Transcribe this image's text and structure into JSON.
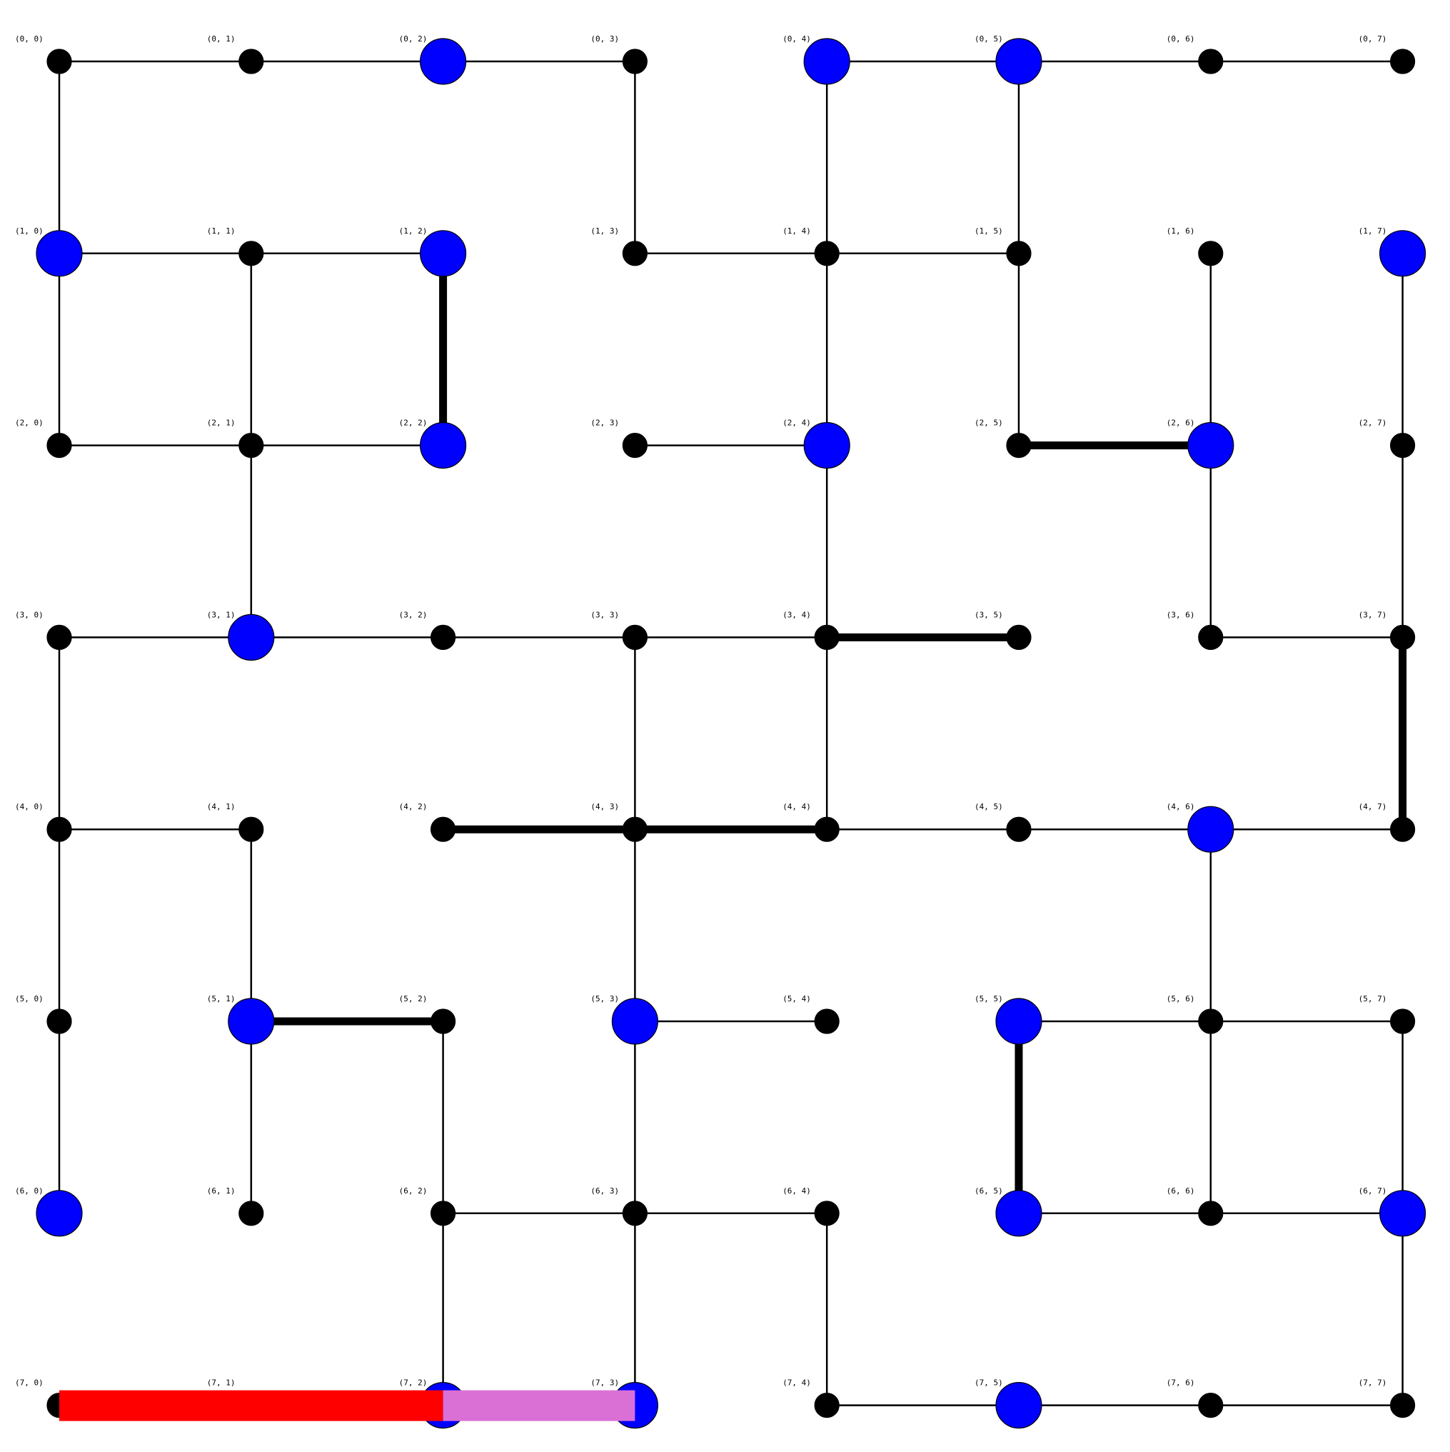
{
  "grid": {
    "rows": 8,
    "cols": 8,
    "labels": [
      [
        "(0, 0)",
        "(0, 1)",
        "(0, 2)",
        "(0, 3)",
        "(0, 4)",
        "(0, 5)",
        "(0, 6)",
        "(0, 7)"
      ],
      [
        "(1, 0)",
        "(1, 1)",
        "(1, 2)",
        "(1, 3)",
        "(1, 4)",
        "(1, 5)",
        "(1, 6)",
        "(1, 7)"
      ],
      [
        "(2, 0)",
        "(2, 1)",
        "(2, 2)",
        "(2, 3)",
        "(2, 4)",
        "(2, 5)",
        "(2, 6)",
        "(2, 7)"
      ],
      [
        "(3, 0)",
        "(3, 1)",
        "(3, 2)",
        "(3, 3)",
        "(3, 4)",
        "(3, 5)",
        "(3, 6)",
        "(3, 7)"
      ],
      [
        "(4, 0)",
        "(4, 1)",
        "(4, 2)",
        "(4, 3)",
        "(4, 4)",
        "(4, 5)",
        "(4, 6)",
        "(4, 7)"
      ],
      [
        "(5, 0)",
        "(5, 1)",
        "(5, 2)",
        "(5, 3)",
        "(5, 4)",
        "(5, 5)",
        "(5, 6)",
        "(5, 7)"
      ],
      [
        "(6, 0)",
        "(6, 1)",
        "(6, 2)",
        "(6, 3)",
        "(6, 4)",
        "(6, 5)",
        "(6, 6)",
        "(6, 7)"
      ],
      [
        "(7, 0)",
        "(7, 1)",
        "(7, 2)",
        "(7, 3)",
        "(7, 4)",
        "(7, 5)",
        "(7, 6)",
        "(7, 7)"
      ]
    ]
  },
  "highlighted_nodes": [
    [
      0,
      2
    ],
    [
      0,
      4
    ],
    [
      0,
      5
    ],
    [
      1,
      0
    ],
    [
      1,
      2
    ],
    [
      1,
      7
    ],
    [
      2,
      2
    ],
    [
      2,
      4
    ],
    [
      2,
      6
    ],
    [
      3,
      1
    ],
    [
      4,
      6
    ],
    [
      5,
      1
    ],
    [
      5,
      3
    ],
    [
      5,
      5
    ],
    [
      6,
      0
    ],
    [
      6,
      5
    ],
    [
      6,
      7
    ],
    [
      7,
      2
    ],
    [
      7,
      3
    ],
    [
      7,
      5
    ]
  ],
  "edges": [
    [
      [
        0,
        0
      ],
      [
        0,
        1
      ]
    ],
    [
      [
        0,
        1
      ],
      [
        0,
        2
      ]
    ],
    [
      [
        0,
        2
      ],
      [
        0,
        3
      ]
    ],
    [
      [
        0,
        4
      ],
      [
        0,
        5
      ]
    ],
    [
      [
        0,
        5
      ],
      [
        0,
        6
      ]
    ],
    [
      [
        0,
        6
      ],
      [
        0,
        7
      ]
    ],
    [
      [
        0,
        0
      ],
      [
        1,
        0
      ]
    ],
    [
      [
        0,
        3
      ],
      [
        1,
        3
      ]
    ],
    [
      [
        0,
        4
      ],
      [
        1,
        4
      ]
    ],
    [
      [
        0,
        5
      ],
      [
        1,
        5
      ]
    ],
    [
      [
        1,
        0
      ],
      [
        1,
        1
      ]
    ],
    [
      [
        1,
        1
      ],
      [
        1,
        2
      ]
    ],
    [
      [
        1,
        3
      ],
      [
        1,
        4
      ]
    ],
    [
      [
        1,
        4
      ],
      [
        1,
        5
      ]
    ],
    [
      [
        1,
        0
      ],
      [
        2,
        0
      ]
    ],
    [
      [
        1,
        1
      ],
      [
        2,
        1
      ]
    ],
    [
      [
        1,
        4
      ],
      [
        2,
        4
      ]
    ],
    [
      [
        1,
        5
      ],
      [
        2,
        5
      ]
    ],
    [
      [
        1,
        6
      ],
      [
        2,
        6
      ]
    ],
    [
      [
        1,
        7
      ],
      [
        2,
        7
      ]
    ],
    [
      [
        2,
        0
      ],
      [
        2,
        1
      ]
    ],
    [
      [
        2,
        1
      ],
      [
        2,
        2
      ]
    ],
    [
      [
        2,
        3
      ],
      [
        2,
        4
      ]
    ],
    [
      [
        2,
        1
      ],
      [
        3,
        1
      ]
    ],
    [
      [
        2,
        4
      ],
      [
        3,
        4
      ]
    ],
    [
      [
        2,
        6
      ],
      [
        3,
        6
      ]
    ],
    [
      [
        2,
        7
      ],
      [
        3,
        7
      ]
    ],
    [
      [
        3,
        0
      ],
      [
        3,
        1
      ]
    ],
    [
      [
        3,
        1
      ],
      [
        3,
        2
      ]
    ],
    [
      [
        3,
        2
      ],
      [
        3,
        3
      ]
    ],
    [
      [
        3,
        3
      ],
      [
        3,
        4
      ]
    ],
    [
      [
        3,
        6
      ],
      [
        3,
        7
      ]
    ],
    [
      [
        3,
        0
      ],
      [
        4,
        0
      ]
    ],
    [
      [
        3,
        3
      ],
      [
        4,
        3
      ]
    ],
    [
      [
        3,
        4
      ],
      [
        4,
        4
      ]
    ],
    [
      [
        4,
        0
      ],
      [
        4,
        1
      ]
    ],
    [
      [
        4,
        4
      ],
      [
        4,
        5
      ]
    ],
    [
      [
        4,
        5
      ],
      [
        4,
        6
      ]
    ],
    [
      [
        4,
        6
      ],
      [
        4,
        7
      ]
    ],
    [
      [
        4,
        0
      ],
      [
        5,
        0
      ]
    ],
    [
      [
        4,
        1
      ],
      [
        5,
        1
      ]
    ],
    [
      [
        4,
        3
      ],
      [
        5,
        3
      ]
    ],
    [
      [
        4,
        6
      ],
      [
        5,
        6
      ]
    ],
    [
      [
        5,
        3
      ],
      [
        5,
        4
      ]
    ],
    [
      [
        5,
        5
      ],
      [
        5,
        6
      ]
    ],
    [
      [
        5,
        6
      ],
      [
        5,
        7
      ]
    ],
    [
      [
        5,
        0
      ],
      [
        6,
        0
      ]
    ],
    [
      [
        5,
        1
      ],
      [
        6,
        1
      ]
    ],
    [
      [
        5,
        2
      ],
      [
        6,
        2
      ]
    ],
    [
      [
        5,
        3
      ],
      [
        6,
        3
      ]
    ],
    [
      [
        5,
        6
      ],
      [
        6,
        6
      ]
    ],
    [
      [
        5,
        7
      ],
      [
        6,
        7
      ]
    ],
    [
      [
        6,
        2
      ],
      [
        6,
        3
      ]
    ],
    [
      [
        6,
        3
      ],
      [
        6,
        4
      ]
    ],
    [
      [
        6,
        5
      ],
      [
        6,
        6
      ]
    ],
    [
      [
        6,
        6
      ],
      [
        6,
        7
      ]
    ],
    [
      [
        6,
        2
      ],
      [
        7,
        2
      ]
    ],
    [
      [
        6,
        3
      ],
      [
        7,
        3
      ]
    ],
    [
      [
        6,
        4
      ],
      [
        7,
        4
      ]
    ],
    [
      [
        6,
        7
      ],
      [
        7,
        7
      ]
    ],
    [
      [
        7,
        4
      ],
      [
        7,
        5
      ]
    ],
    [
      [
        7,
        5
      ],
      [
        7,
        6
      ]
    ],
    [
      [
        7,
        6
      ],
      [
        7,
        7
      ]
    ]
  ],
  "thick_edges": [
    [
      [
        1,
        2
      ],
      [
        2,
        2
      ]
    ],
    [
      [
        2,
        5
      ],
      [
        2,
        6
      ]
    ],
    [
      [
        3,
        4
      ],
      [
        3,
        5
      ]
    ],
    [
      [
        4,
        2
      ],
      [
        4,
        3
      ]
    ],
    [
      [
        4,
        3
      ],
      [
        4,
        4
      ]
    ],
    [
      [
        5,
        1
      ],
      [
        5,
        2
      ]
    ],
    [
      [
        5,
        5
      ],
      [
        6,
        5
      ]
    ],
    [
      [
        3,
        7
      ],
      [
        4,
        7
      ]
    ]
  ],
  "path_segments": [
    {
      "from": [
        7,
        0
      ],
      "to": [
        7,
        2
      ],
      "color": "#ff0000"
    },
    {
      "from": [
        7,
        2
      ],
      "to": [
        7,
        3
      ],
      "color": "#da70d6"
    }
  ],
  "colors": {
    "highlight_node": "#0000ff",
    "node": "#000000",
    "edge": "#000000"
  }
}
